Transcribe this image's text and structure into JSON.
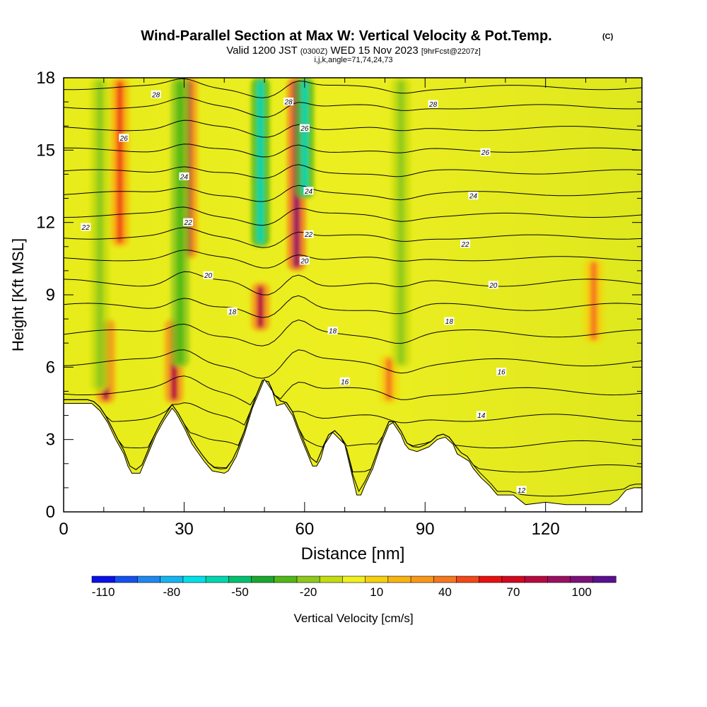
{
  "chart_data": {
    "type": "heatmap",
    "title": "Wind-Parallel Section at Max W: Vertical Velocity & Pot.Temp.",
    "copyright": "(C)",
    "subtitle_prefix": "Valid 1200 JST",
    "subtitle_utc": "(0300Z)",
    "subtitle_date": "WED 15 Nov 2023",
    "subtitle_fcst": "[9hrFcst@2207z]",
    "section_params": "i,j,k,angle=71,74,24,73",
    "xlabel": "Distance [nm]",
    "ylabel": "Height [Kft MSL]",
    "xlim": [
      0,
      144
    ],
    "ylim": [
      0,
      18
    ],
    "x_ticks": [
      "0",
      "30",
      "60",
      "90",
      "120"
    ],
    "y_ticks": [
      "0",
      "3",
      "6",
      "9",
      "12",
      "15",
      "18"
    ],
    "colorbar": {
      "label": "Vertical Velocity [cm/s]",
      "range": [
        -110,
        120
      ],
      "step": 10,
      "tick_labels": [
        "-110",
        "-80",
        "-50",
        "-20",
        "10",
        "40",
        "70",
        "100"
      ],
      "colors": [
        "#0a10e8",
        "#1550ee",
        "#1e88f0",
        "#16b4f0",
        "#00e0e8",
        "#00d6b0",
        "#00c070",
        "#1aa830",
        "#50b818",
        "#8ec81c",
        "#c4dc10",
        "#f0f020",
        "#f6d00e",
        "#f8b412",
        "#f89818",
        "#f47820",
        "#f04818",
        "#e81010",
        "#d00820",
        "#b80840",
        "#9a1060",
        "#7c1078",
        "#5a1090"
      ]
    },
    "series": [
      {
        "type": "filled_contour",
        "variable": "vertical velocity",
        "units": "cm/s",
        "updraft_maxima": [
          {
            "x": 10.5,
            "y_range": [
              4.5,
              8.0
            ],
            "max": 80
          },
          {
            "x": 14,
            "y_range": [
              11,
              18
            ],
            "max": 50
          },
          {
            "x": 27.5,
            "y_range": [
              4.5,
              8.0
            ],
            "max": 80
          },
          {
            "x": 31,
            "y_range": [
              10.5,
              18
            ],
            "max": 80
          },
          {
            "x": 49,
            "y_range": [
              7.5,
              9.5
            ],
            "max": 80
          },
          {
            "x": 58,
            "y_range": [
              10,
              18
            ],
            "max": 90
          },
          {
            "x": 81,
            "y_range": [
              4.5,
              6.5
            ],
            "max": 40
          },
          {
            "x": 132,
            "y_range": [
              7,
              10.5
            ],
            "max": 40
          }
        ],
        "downdraft_minima": [
          {
            "x": 9,
            "y_range": [
              5,
              18
            ],
            "min": -20
          },
          {
            "x": 29,
            "y_range": [
              6,
              18
            ],
            "min": -30
          },
          {
            "x": 49,
            "y_range": [
              11,
              18
            ],
            "min": -60
          },
          {
            "x": 60,
            "y_range": [
              13,
              18
            ],
            "min": -60
          },
          {
            "x": 84,
            "y_range": [
              6,
              18
            ],
            "min": -20
          }
        ]
      },
      {
        "type": "contour_lines",
        "variable": "potential temperature",
        "labels": [
          {
            "text": "28",
            "x": 23,
            "y": 17.3
          },
          {
            "text": "28",
            "x": 56,
            "y": 17.0
          },
          {
            "text": "28",
            "x": 92,
            "y": 16.9
          },
          {
            "text": "26",
            "x": 15,
            "y": 15.5
          },
          {
            "text": "26",
            "x": 60,
            "y": 15.9
          },
          {
            "text": "26",
            "x": 105,
            "y": 14.9
          },
          {
            "text": "24",
            "x": 30,
            "y": 13.9
          },
          {
            "text": "24",
            "x": 61,
            "y": 13.3
          },
          {
            "text": "24",
            "x": 102,
            "y": 13.1
          },
          {
            "text": "22",
            "x": 5.5,
            "y": 11.8
          },
          {
            "text": "22",
            "x": 31,
            "y": 12.0
          },
          {
            "text": "22",
            "x": 61,
            "y": 11.5
          },
          {
            "text": "22",
            "x": 100,
            "y": 11.1
          },
          {
            "text": "20",
            "x": 36,
            "y": 9.8
          },
          {
            "text": "20",
            "x": 60,
            "y": 10.4
          },
          {
            "text": "20",
            "x": 107,
            "y": 9.4
          },
          {
            "text": "18",
            "x": 42,
            "y": 8.3
          },
          {
            "text": "18",
            "x": 67,
            "y": 7.5
          },
          {
            "text": "18",
            "x": 96,
            "y": 7.9
          },
          {
            "text": "16",
            "x": 70,
            "y": 5.4
          },
          {
            "text": "16",
            "x": 109,
            "y": 5.8
          },
          {
            "text": "14",
            "x": 104,
            "y": 4.0
          },
          {
            "text": "12",
            "x": 114,
            "y": 0.9
          }
        ]
      }
    ],
    "terrain_top": [
      [
        0,
        4.5
      ],
      [
        7,
        4.5
      ],
      [
        9,
        4.2
      ],
      [
        11,
        3.7
      ],
      [
        13,
        3.0
      ],
      [
        15,
        2.4
      ],
      [
        16,
        1.9
      ],
      [
        17,
        1.6
      ],
      [
        19,
        1.6
      ],
      [
        20,
        2.0
      ],
      [
        22,
        2.8
      ],
      [
        23,
        3.2
      ],
      [
        25,
        3.8
      ],
      [
        27,
        4.3
      ],
      [
        28,
        4.1
      ],
      [
        30,
        3.5
      ],
      [
        32,
        2.8
      ],
      [
        35,
        2.1
      ],
      [
        37,
        1.7
      ],
      [
        40,
        1.6
      ],
      [
        41,
        1.7
      ],
      [
        43,
        2.3
      ],
      [
        45,
        3.2
      ],
      [
        47,
        4.3
      ],
      [
        50,
        5.5
      ],
      [
        52,
        5.0
      ],
      [
        53,
        4.4
      ],
      [
        55,
        4.5
      ],
      [
        57,
        4.0
      ],
      [
        59,
        3.1
      ],
      [
        61,
        2.3
      ],
      [
        62,
        1.9
      ],
      [
        63,
        1.9
      ],
      [
        64,
        2.2
      ],
      [
        65,
        2.8
      ],
      [
        67,
        3.3
      ],
      [
        70,
        2.8
      ],
      [
        72,
        1.4
      ],
      [
        73,
        0.7
      ],
      [
        74,
        0.7
      ],
      [
        75,
        1.1
      ],
      [
        77,
        1.8
      ],
      [
        79,
        2.8
      ],
      [
        81,
        3.6
      ],
      [
        82,
        3.7
      ],
      [
        84,
        3.2
      ],
      [
        85,
        2.8
      ],
      [
        86,
        2.6
      ],
      [
        88,
        2.5
      ],
      [
        91,
        2.7
      ],
      [
        93,
        3.0
      ],
      [
        95,
        3.1
      ],
      [
        97,
        2.8
      ],
      [
        98,
        2.4
      ],
      [
        99,
        2.3
      ],
      [
        101,
        2.1
      ],
      [
        102,
        1.8
      ],
      [
        104,
        1.4
      ],
      [
        106,
        1.1
      ],
      [
        108,
        0.7
      ],
      [
        112,
        0.7
      ],
      [
        115,
        0.3
      ],
      [
        120,
        0.4
      ],
      [
        125,
        0.3
      ],
      [
        130,
        0.3
      ],
      [
        136,
        0.3
      ],
      [
        138,
        0.5
      ],
      [
        140,
        0.9
      ],
      [
        142,
        1.0
      ],
      [
        144,
        1.0
      ]
    ]
  }
}
